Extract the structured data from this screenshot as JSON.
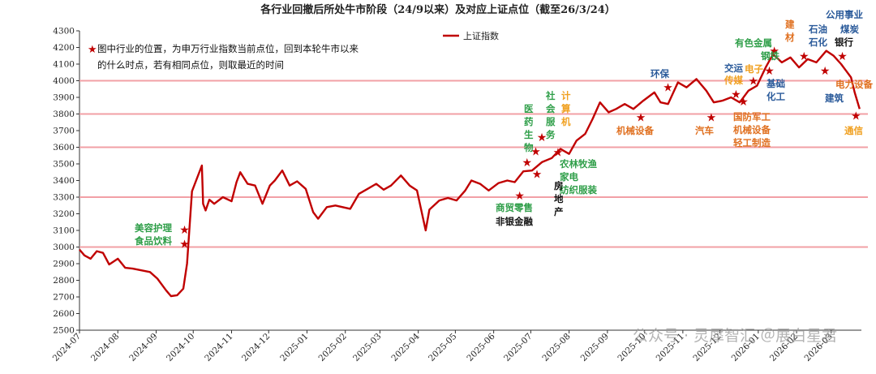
{
  "chart_data": {
    "type": "line",
    "title": "各行业回撤后所处牛市阶段（24/9以来）及对应上证点位（截至26/3/24）",
    "note_lines": [
      "图中行业的位置，为申万行业指数当前点位，回到本轮牛市以来",
      "的什么时点，若有相同点位，则取最近的时间"
    ],
    "legend": {
      "label": "上证指数",
      "position": "top-center"
    },
    "ylim": [
      2500,
      4300
    ],
    "ystep": 100,
    "grid": false,
    "x_ticks": [
      "2024-07",
      "2024-08",
      "2024-09",
      "2024-10",
      "2024-11",
      "2024-12",
      "2025-01",
      "2025-02",
      "2025-03",
      "2025-04",
      "2025-05",
      "2025-06",
      "2025-07",
      "2025-08",
      "2025-09",
      "2025-10",
      "2025-11",
      "2025-12",
      "2026-01",
      "2026-02",
      "2026-03"
    ],
    "reference_lines": [
      3000,
      3300,
      3600,
      3800,
      4000
    ],
    "series": [
      {
        "name": "上证指数",
        "color": "#c00000",
        "points": [
          [
            "2024-07-01",
            2985
          ],
          [
            "2024-07-05",
            2950
          ],
          [
            "2024-07-10",
            2930
          ],
          [
            "2024-07-15",
            2975
          ],
          [
            "2024-07-20",
            2965
          ],
          [
            "2024-07-25",
            2895
          ],
          [
            "2024-08-01",
            2930
          ],
          [
            "2024-08-07",
            2875
          ],
          [
            "2024-08-13",
            2870
          ],
          [
            "2024-08-20",
            2860
          ],
          [
            "2024-08-27",
            2850
          ],
          [
            "2024-09-02",
            2810
          ],
          [
            "2024-09-09",
            2740
          ],
          [
            "2024-09-13",
            2705
          ],
          [
            "2024-09-18",
            2710
          ],
          [
            "2024-09-23",
            2750
          ],
          [
            "2024-09-26",
            2900
          ],
          [
            "2024-09-30",
            3335
          ],
          [
            "2024-10-08",
            3490
          ],
          [
            "2024-10-09",
            3260
          ],
          [
            "2024-10-11",
            3220
          ],
          [
            "2024-10-14",
            3285
          ],
          [
            "2024-10-18",
            3260
          ],
          [
            "2024-10-25",
            3300
          ],
          [
            "2024-11-01",
            3275
          ],
          [
            "2024-11-05",
            3390
          ],
          [
            "2024-11-08",
            3450
          ],
          [
            "2024-11-14",
            3380
          ],
          [
            "2024-11-20",
            3370
          ],
          [
            "2024-11-26",
            3260
          ],
          [
            "2024-12-02",
            3370
          ],
          [
            "2024-12-06",
            3400
          ],
          [
            "2024-12-12",
            3460
          ],
          [
            "2024-12-18",
            3370
          ],
          [
            "2024-12-24",
            3395
          ],
          [
            "2024-12-31",
            3350
          ],
          [
            "2025-01-06",
            3210
          ],
          [
            "2025-01-10",
            3170
          ],
          [
            "2025-01-17",
            3240
          ],
          [
            "2025-01-24",
            3250
          ],
          [
            "2025-02-05",
            3230
          ],
          [
            "2025-02-12",
            3320
          ],
          [
            "2025-02-19",
            3350
          ],
          [
            "2025-02-26",
            3380
          ],
          [
            "2025-03-04",
            3345
          ],
          [
            "2025-03-10",
            3370
          ],
          [
            "2025-03-18",
            3430
          ],
          [
            "2025-03-25",
            3370
          ],
          [
            "2025-03-31",
            3340
          ],
          [
            "2025-04-07",
            3100
          ],
          [
            "2025-04-10",
            3225
          ],
          [
            "2025-04-18",
            3280
          ],
          [
            "2025-04-25",
            3295
          ],
          [
            "2025-05-02",
            3280
          ],
          [
            "2025-05-09",
            3340
          ],
          [
            "2025-05-14",
            3400
          ],
          [
            "2025-05-21",
            3380
          ],
          [
            "2025-05-28",
            3340
          ],
          [
            "2025-06-05",
            3385
          ],
          [
            "2025-06-12",
            3400
          ],
          [
            "2025-06-18",
            3390
          ],
          [
            "2025-06-25",
            3455
          ],
          [
            "2025-07-02",
            3460
          ],
          [
            "2025-07-10",
            3510
          ],
          [
            "2025-07-18",
            3535
          ],
          [
            "2025-07-25",
            3590
          ],
          [
            "2025-08-01",
            3560
          ],
          [
            "2025-08-07",
            3640
          ],
          [
            "2025-08-14",
            3680
          ],
          [
            "2025-08-20",
            3770
          ],
          [
            "2025-08-26",
            3870
          ],
          [
            "2025-09-02",
            3810
          ],
          [
            "2025-09-08",
            3830
          ],
          [
            "2025-09-15",
            3860
          ],
          [
            "2025-09-22",
            3830
          ],
          [
            "2025-09-30",
            3880
          ],
          [
            "2025-10-09",
            3930
          ],
          [
            "2025-10-14",
            3870
          ],
          [
            "2025-10-20",
            3860
          ],
          [
            "2025-10-28",
            3990
          ],
          [
            "2025-11-04",
            3960
          ],
          [
            "2025-11-12",
            4010
          ],
          [
            "2025-11-20",
            3940
          ],
          [
            "2025-11-26",
            3870
          ],
          [
            "2025-12-03",
            3880
          ],
          [
            "2025-12-10",
            3900
          ],
          [
            "2025-12-17",
            3870
          ],
          [
            "2025-12-24",
            3940
          ],
          [
            "2025-12-31",
            3970
          ],
          [
            "2026-01-07",
            4080
          ],
          [
            "2026-01-13",
            4160
          ],
          [
            "2026-01-20",
            4110
          ],
          [
            "2026-01-27",
            4140
          ],
          [
            "2026-02-03",
            4080
          ],
          [
            "2026-02-10",
            4130
          ],
          [
            "2026-02-17",
            4110
          ],
          [
            "2026-02-25",
            4180
          ],
          [
            "2026-03-03",
            4150
          ],
          [
            "2026-03-09",
            4100
          ],
          [
            "2026-03-13",
            4060
          ],
          [
            "2026-03-17",
            4020
          ],
          [
            "2026-03-20",
            3930
          ],
          [
            "2026-03-24",
            3830
          ]
        ]
      }
    ],
    "annotations": [
      {
        "lines": [
          "美容护理",
          "食品饮料"
        ],
        "color": "#2e9e48",
        "dir": "h",
        "marks": [
          [
            "2024-09-24",
            3105
          ],
          [
            "2024-09-24",
            3020
          ]
        ]
      },
      {
        "lines": [
          "医",
          "药",
          "生",
          "物"
        ],
        "color": "#2e9e48",
        "dir": "v",
        "marks": [
          [
            "2025-06-28",
            3510
          ]
        ]
      },
      {
        "lines": [
          "社",
          "会",
          "服",
          "务"
        ],
        "color": "#2e9e48",
        "dir": "v",
        "marks": [
          [
            "2025-07-05",
            3575
          ]
        ]
      },
      {
        "lines": [
          "计",
          "算",
          "机"
        ],
        "color": "#f0a020",
        "dir": "v",
        "marks": [
          [
            "2025-07-10",
            3660
          ]
        ]
      },
      {
        "lines": [
          "农林牧渔",
          "家电",
          "纺织服装"
        ],
        "color": "#2e9e48",
        "dir": "h",
        "marks": [
          [
            "2025-07-23",
            3570
          ]
        ]
      },
      {
        "lines": [
          "商贸零售"
        ],
        "color": "#2e9e48",
        "dir": "h",
        "marks": [
          [
            "2025-06-22",
            3310
          ]
        ]
      },
      {
        "lines": [
          "非银金融"
        ],
        "color": "#111111",
        "dir": "h",
        "marks": []
      },
      {
        "lines": [
          "房",
          "地",
          "产"
        ],
        "color": "#111111",
        "dir": "v",
        "marks": [
          [
            "2025-07-06",
            3440
          ]
        ]
      },
      {
        "lines": [
          "机械设备"
        ],
        "color": "#e07020",
        "dir": "h",
        "marks": [
          [
            "2025-09-28",
            3780
          ]
        ]
      },
      {
        "lines": [
          "环保"
        ],
        "color": "#2a5a9a",
        "dir": "h",
        "marks": [
          [
            "2025-10-20",
            3960
          ]
        ]
      },
      {
        "lines": [
          "汽车"
        ],
        "color": "#e07020",
        "dir": "h",
        "marks": [
          [
            "2025-11-24",
            3780
          ]
        ]
      },
      {
        "lines": [
          "交运"
        ],
        "color": "#2a5a9a",
        "dir": "h",
        "marks": []
      },
      {
        "lines": [
          "传媒"
        ],
        "color": "#f0a020",
        "dir": "h",
        "marks": [
          [
            "2025-12-14",
            3920
          ]
        ]
      },
      {
        "lines": [
          "有色金属"
        ],
        "color": "#2e9e48",
        "dir": "h",
        "marks": []
      },
      {
        "lines": [
          "钢铁"
        ],
        "color": "#2e9e48",
        "dir": "h",
        "marks": []
      },
      {
        "lines": [
          "电子"
        ],
        "color": "#f0a020",
        "dir": "h",
        "marks": [
          [
            "2025-12-28",
            4000
          ]
        ]
      },
      {
        "lines": [
          "基础",
          "化工"
        ],
        "color": "#2a5a9a",
        "dir": "h",
        "marks": [
          [
            "2026-01-10",
            4060
          ]
        ]
      },
      {
        "lines": [
          "国防军工",
          "机械设备",
          "轻工制造"
        ],
        "color": "#e07020",
        "dir": "h",
        "marks": [
          [
            "2025-12-20",
            3875
          ]
        ]
      },
      {
        "lines": [
          "建",
          "材"
        ],
        "color": "#e07020",
        "dir": "v",
        "marks": [
          [
            "2026-01-14",
            4180
          ]
        ]
      },
      {
        "lines": [
          "石油",
          "石化"
        ],
        "color": "#2a5a9a",
        "dir": "h",
        "marks": [
          [
            "2026-02-07",
            4150
          ]
        ]
      },
      {
        "lines": [
          "公用事业"
        ],
        "color": "#2a5a9a",
        "dir": "h",
        "marks": []
      },
      {
        "lines": [
          "煤炭"
        ],
        "color": "#2a5a9a",
        "dir": "h",
        "marks": []
      },
      {
        "lines": [
          "银行"
        ],
        "color": "#111111",
        "dir": "h",
        "marks": [
          [
            "2026-03-10",
            4150
          ]
        ]
      },
      {
        "lines": [
          "电力设备"
        ],
        "color": "#e07020",
        "dir": "h",
        "marks": [
          [
            "2026-02-24",
            4060
          ]
        ]
      },
      {
        "lines": [
          "建筑"
        ],
        "color": "#2a5a9a",
        "dir": "h",
        "marks": []
      },
      {
        "lines": [
          "通信"
        ],
        "color": "#f0a020",
        "dir": "h",
        "marks": [
          [
            "2026-03-21",
            3790
          ]
        ]
      }
    ]
  },
  "watermark": "公众号 · 灵犀智汇 ＠展白星君"
}
